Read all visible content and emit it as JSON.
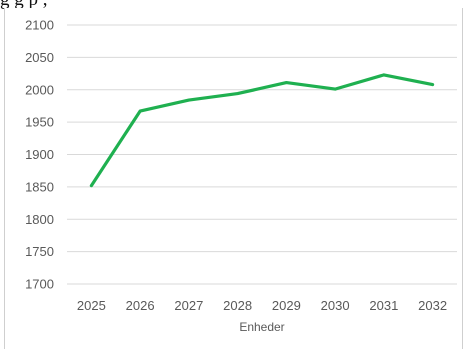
{
  "top_text": "g                                    g p         ,",
  "chart_data": {
    "type": "line",
    "title": "",
    "xlabel": "Enheder",
    "ylabel": "",
    "categories": [
      "2025",
      "2026",
      "2027",
      "2028",
      "2029",
      "2030",
      "2031",
      "2032"
    ],
    "series": [
      {
        "values": [
          1852,
          1967,
          1984,
          1994,
          2011,
          2001,
          2023,
          2008
        ]
      }
    ],
    "ylim": [
      1700,
      2100
    ],
    "yticks": [
      1700,
      1750,
      1800,
      1850,
      1900,
      1950,
      2000,
      2050,
      2100
    ],
    "grid": "horizontal",
    "legend": "none",
    "colors": {
      "line": "#1fb050",
      "grid": "#d9d9d9",
      "tick_text": "#595959"
    }
  }
}
